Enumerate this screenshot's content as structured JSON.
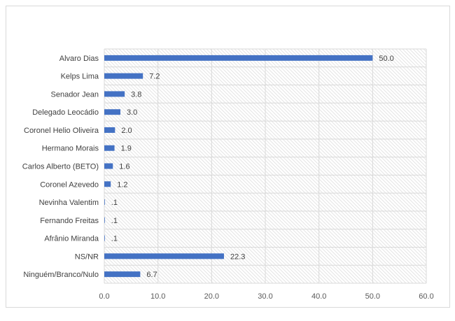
{
  "chart_data": {
    "type": "bar",
    "orientation": "horizontal",
    "categories": [
      "Alvaro Dias",
      "Kelps Lima",
      "Senador Jean",
      "Delegado Leocádio",
      "Coronel Helio Oliveira",
      "Hermano Morais",
      "Carlos Alberto (BETO)",
      "Coronel Azevedo",
      "Nevinha Valentim",
      "Fernando Freitas",
      "Afrânio Miranda",
      "NS/NR",
      "Ninguém/Branco/Nulo"
    ],
    "values": [
      50.0,
      7.2,
      3.8,
      3.0,
      2.0,
      1.9,
      1.6,
      1.2,
      0.1,
      0.1,
      0.1,
      22.3,
      6.7
    ],
    "value_labels": [
      "50.0",
      "7.2",
      "3.8",
      "3.0",
      "2.0",
      "1.9",
      "1.6",
      "1.2",
      ".1",
      ".1",
      ".1",
      "22.3",
      "6.7"
    ],
    "x_ticks": [
      "0.0",
      "10.0",
      "20.0",
      "30.0",
      "40.0",
      "50.0",
      "60.0"
    ],
    "xlim": [
      0,
      60
    ],
    "title": "",
    "xlabel": "",
    "ylabel": "",
    "grid": true,
    "legend": "none",
    "colors": {
      "bar": "#4472c4",
      "grid": "#d9d9d9",
      "hatch": "#e4e4e4"
    }
  }
}
